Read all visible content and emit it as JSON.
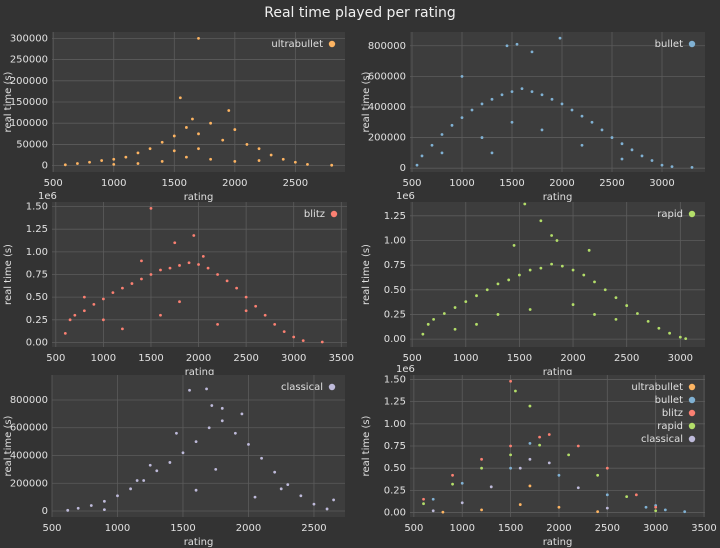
{
  "title": "Real time played per rating",
  "chart_data": [
    {
      "type": "scatter",
      "xlabel": "rating",
      "ylabel": "real time (s)",
      "grid": true,
      "legend": "upper right",
      "xlim": [
        490,
        2910
      ],
      "ylim": [
        -15000,
        315000
      ],
      "xticks": [
        500,
        1000,
        1500,
        2000,
        2500
      ],
      "yticks": [
        0,
        50000,
        100000,
        150000,
        200000,
        250000,
        300000
      ],
      "series": [
        {
          "name": "ultrabullet",
          "color": "#fdb462",
          "x": [
            600,
            700,
            800,
            900,
            1000,
            1100,
            1200,
            1300,
            1400,
            1500,
            1550,
            1600,
            1650,
            1700,
            1700,
            1800,
            1900,
            1950,
            2000,
            2100,
            2200,
            2300,
            2400,
            2500,
            2600,
            2800,
            1200,
            1400,
            1600,
            1800,
            2000,
            1000,
            1500,
            1700,
            2200
          ],
          "values": [
            2000,
            5000,
            8000,
            12000,
            15000,
            20000,
            30000,
            40000,
            55000,
            70000,
            160000,
            90000,
            110000,
            300000,
            75000,
            100000,
            60000,
            130000,
            85000,
            50000,
            40000,
            25000,
            15000,
            8000,
            3000,
            1000,
            5000,
            10000,
            20000,
            15000,
            10000,
            3000,
            35000,
            40000,
            12000
          ]
        }
      ]
    },
    {
      "type": "scatter",
      "xlabel": "rating",
      "ylabel": "real time (s)",
      "grid": true,
      "legend": "upper right",
      "xlim": [
        480,
        3430
      ],
      "ylim": [
        -25000,
        890000
      ],
      "xticks": [
        500,
        1000,
        1500,
        2000,
        2500,
        3000
      ],
      "yticks": [
        0,
        200000,
        400000,
        600000,
        800000
      ],
      "series": [
        {
          "name": "bullet",
          "color": "#80b1d3",
          "x": [
            550,
            600,
            700,
            800,
            900,
            1000,
            1100,
            1200,
            1300,
            1400,
            1500,
            1600,
            1700,
            1800,
            1900,
            2000,
            2100,
            2200,
            2300,
            2400,
            2500,
            2600,
            2700,
            2800,
            2900,
            3000,
            3100,
            3300,
            1450,
            1550,
            1980,
            1700,
            1000,
            800,
            1200,
            1500,
            1800,
            2200,
            2600,
            1300
          ],
          "values": [
            20000,
            80000,
            150000,
            220000,
            280000,
            330000,
            380000,
            420000,
            450000,
            480000,
            500000,
            520000,
            500000,
            480000,
            450000,
            420000,
            380000,
            340000,
            300000,
            250000,
            200000,
            160000,
            120000,
            80000,
            50000,
            20000,
            10000,
            5000,
            800000,
            810000,
            850000,
            760000,
            600000,
            100000,
            200000,
            300000,
            250000,
            150000,
            60000,
            100000
          ]
        }
      ]
    },
    {
      "type": "scatter",
      "xlabel": "rating",
      "ylabel": "real time (s)",
      "grid": true,
      "legend": "upper right",
      "y_scale_label": "1e6",
      "xlim": [
        460,
        3560
      ],
      "ylim": [
        -50000,
        1550000
      ],
      "xticks": [
        500,
        1000,
        1500,
        2000,
        2500,
        3000,
        3500
      ],
      "yticks": [
        {
          "value": 0,
          "label": "0.00"
        },
        {
          "value": 250000,
          "label": "0.25"
        },
        {
          "value": 500000,
          "label": "0.50"
        },
        {
          "value": 750000,
          "label": "0.75"
        },
        {
          "value": 1000000,
          "label": "1.00"
        },
        {
          "value": 1250000,
          "label": "1.25"
        },
        {
          "value": 1500000,
          "label": "1.50"
        }
      ],
      "series": [
        {
          "name": "blitz",
          "color": "#fb8072",
          "x": [
            600,
            650,
            700,
            800,
            900,
            1000,
            1100,
            1200,
            1300,
            1400,
            1500,
            1600,
            1700,
            1800,
            1900,
            2000,
            2100,
            2200,
            2300,
            2400,
            2500,
            2600,
            2700,
            2800,
            2900,
            3000,
            3100,
            3300,
            1500,
            1750,
            1950,
            2050,
            1200,
            1000,
            1600,
            2200,
            2500,
            800,
            1400,
            1800
          ],
          "values": [
            100000,
            250000,
            300000,
            350000,
            420000,
            480000,
            550000,
            600000,
            650000,
            700000,
            750000,
            800000,
            820000,
            850000,
            880000,
            860000,
            820000,
            750000,
            680000,
            600000,
            500000,
            400000,
            300000,
            200000,
            120000,
            60000,
            20000,
            5000,
            1480000,
            1100000,
            1180000,
            950000,
            150000,
            250000,
            300000,
            200000,
            350000,
            500000,
            900000,
            450000
          ]
        }
      ]
    },
    {
      "type": "scatter",
      "xlabel": "rating",
      "ylabel": "real time (s)",
      "grid": true,
      "legend": "upper right",
      "y_scale_label": "1e6",
      "xlim": [
        480,
        3230
      ],
      "ylim": [
        -80000,
        1390000
      ],
      "xticks": [
        500,
        1000,
        1500,
        2000,
        2500,
        3000
      ],
      "yticks": [
        {
          "value": 0,
          "label": "0.00"
        },
        {
          "value": 250000,
          "label": "0.25"
        },
        {
          "value": 500000,
          "label": "0.50"
        },
        {
          "value": 750000,
          "label": "0.75"
        },
        {
          "value": 1000000,
          "label": "1.00"
        },
        {
          "value": 1250000,
          "label": "1.25"
        }
      ],
      "series": [
        {
          "name": "rapid",
          "color": "#b3de69",
          "x": [
            600,
            650,
            700,
            800,
            900,
            1000,
            1100,
            1200,
            1300,
            1400,
            1500,
            1600,
            1700,
            1800,
            1900,
            2000,
            2100,
            2200,
            2300,
            2400,
            2500,
            2600,
            2700,
            2800,
            2900,
            3000,
            3050,
            1550,
            1700,
            1850,
            1450,
            2150,
            1100,
            1300,
            1600,
            2000,
            2400,
            900,
            1800,
            2200
          ],
          "values": [
            50000,
            150000,
            200000,
            260000,
            320000,
            380000,
            440000,
            500000,
            560000,
            600000,
            650000,
            700000,
            720000,
            760000,
            740000,
            700000,
            650000,
            580000,
            500000,
            420000,
            340000,
            260000,
            180000,
            110000,
            60000,
            20000,
            5000,
            1370000,
            1200000,
            1000000,
            950000,
            900000,
            150000,
            250000,
            300000,
            350000,
            200000,
            100000,
            1050000,
            250000
          ]
        }
      ]
    },
    {
      "type": "scatter",
      "xlabel": "rating",
      "ylabel": "real time (s)",
      "grid": true,
      "legend": "upper right",
      "xlim": [
        500,
        2737
      ],
      "ylim": [
        -43000,
        980000
      ],
      "xticks": [
        500,
        1000,
        1500,
        2000,
        2500
      ],
      "yticks": [
        0,
        200000,
        400000,
        600000,
        800000
      ],
      "series": [
        {
          "name": "classical",
          "color": "#bebada",
          "x": [
            620,
            700,
            800,
            900,
            1000,
            1100,
            1200,
            1300,
            1400,
            1500,
            1600,
            1700,
            1800,
            1900,
            2000,
            2100,
            2200,
            2300,
            2400,
            2500,
            2600,
            2650,
            1550,
            1680,
            1720,
            1800,
            1950,
            1450,
            1250,
            1150,
            1600,
            2050,
            1750,
            2250,
            900
          ],
          "values": [
            5000,
            20000,
            40000,
            70000,
            110000,
            160000,
            220000,
            290000,
            350000,
            420000,
            500000,
            600000,
            650000,
            560000,
            480000,
            380000,
            280000,
            190000,
            110000,
            50000,
            15000,
            80000,
            870000,
            880000,
            760000,
            740000,
            700000,
            560000,
            330000,
            220000,
            150000,
            100000,
            300000,
            160000,
            10000
          ]
        }
      ]
    },
    {
      "type": "scatter",
      "xlabel": "rating",
      "ylabel": "real time (s)",
      "grid": true,
      "legend": "upper right",
      "y_scale_label": "1e6",
      "xlim": [
        460,
        3510
      ],
      "ylim": [
        -50000,
        1550000
      ],
      "xticks": [
        500,
        1000,
        1500,
        2000,
        2500,
        3000,
        3500
      ],
      "yticks": [
        {
          "value": 0,
          "label": "0.00"
        },
        {
          "value": 250000,
          "label": "0.25"
        },
        {
          "value": 500000,
          "label": "0.50"
        },
        {
          "value": 750000,
          "label": "0.75"
        },
        {
          "value": 1000000,
          "label": "1.00"
        },
        {
          "value": 1250000,
          "label": "1.25"
        },
        {
          "value": 1500000,
          "label": "1.50"
        }
      ],
      "series": [
        {
          "name": "ultrabullet",
          "color": "#fdb462",
          "x": [
            800,
            1200,
            1600,
            1700,
            2000,
            2400
          ],
          "values": [
            5000,
            30000,
            90000,
            300000,
            60000,
            10000
          ]
        },
        {
          "name": "bullet",
          "color": "#80b1d3",
          "x": [
            700,
            1000,
            1500,
            1700,
            2000,
            2500,
            2900,
            3000,
            3100,
            3300
          ],
          "values": [
            150000,
            330000,
            500000,
            780000,
            420000,
            200000,
            60000,
            80000,
            30000,
            10000
          ]
        },
        {
          "name": "blitz",
          "color": "#fb8072",
          "x": [
            600,
            900,
            1200,
            1500,
            1800,
            1900,
            2200,
            2500,
            2800,
            3000,
            1500
          ],
          "values": [
            150000,
            420000,
            600000,
            750000,
            850000,
            880000,
            750000,
            500000,
            200000,
            60000,
            1480000
          ]
        },
        {
          "name": "rapid",
          "color": "#b3de69",
          "x": [
            600,
            900,
            1200,
            1500,
            1550,
            1800,
            2100,
            2400,
            2700,
            3000,
            1700
          ],
          "values": [
            100000,
            320000,
            500000,
            650000,
            1370000,
            760000,
            650000,
            420000,
            180000,
            20000,
            1200000
          ]
        },
        {
          "name": "classical",
          "color": "#bebada",
          "x": [
            700,
            1000,
            1300,
            1600,
            1700,
            1900,
            2200,
            2500
          ],
          "values": [
            20000,
            110000,
            290000,
            500000,
            600000,
            560000,
            280000,
            50000
          ]
        }
      ]
    }
  ]
}
